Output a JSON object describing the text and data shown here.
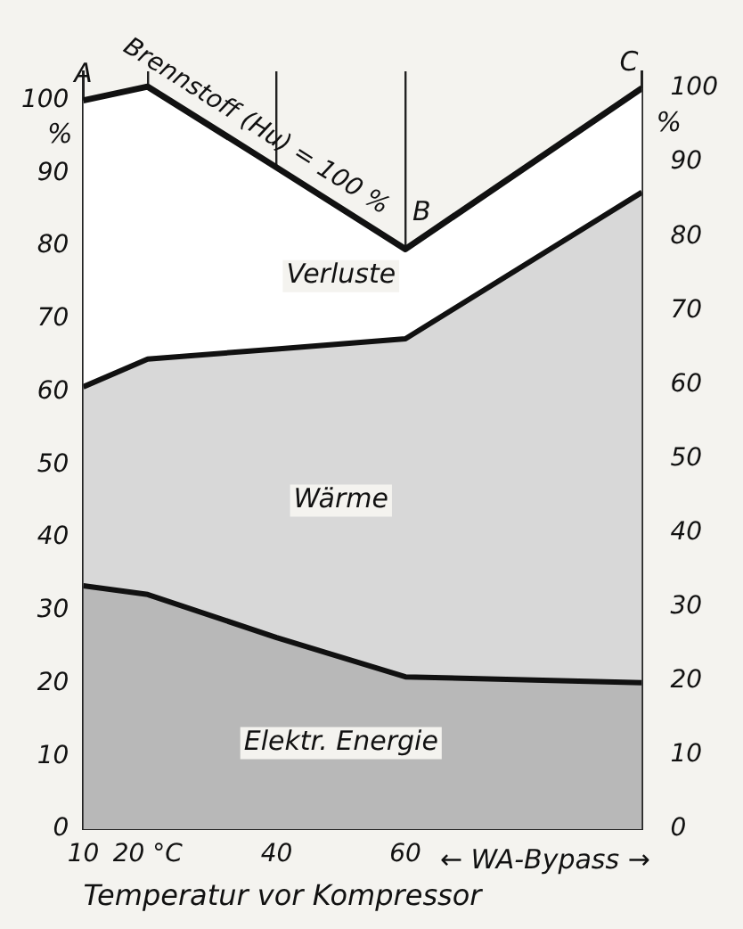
{
  "chart_data": {
    "type": "area",
    "stacked": true,
    "xlabel": "Temperatur vor Kompressor",
    "ylabel": "%",
    "y2label": "%",
    "x": [
      10,
      20,
      40,
      60,
      96.7
    ],
    "series": [
      {
        "name": "Elektr. Energie",
        "color": "#b8b8b8",
        "values": [
          33.4,
          32.2,
          26.3,
          20.9,
          20.1
        ]
      },
      {
        "name": "Wärme",
        "color": "#d8d8d8",
        "values": [
          27.3,
          32.3,
          39.6,
          46.4,
          67.3
        ]
      },
      {
        "name": "Verluste",
        "color": "#ffffff",
        "values": [
          39.3,
          37.4,
          24.9,
          12.3,
          14.3
        ]
      }
    ],
    "xlim": [
      10,
      96.7
    ],
    "xticks": [
      10,
      {
        "value": 20,
        "label": "20 °C"
      },
      40,
      60
    ],
    "ylim": [
      0,
      104
    ],
    "yticks": [
      0,
      10,
      20,
      30,
      40,
      50,
      60,
      70,
      80,
      90,
      100
    ],
    "y2lim": [
      0,
      102.3
    ],
    "y2ticks": [
      0,
      10,
      20,
      30,
      40,
      50,
      60,
      70,
      80,
      90,
      100
    ],
    "grid": "x",
    "legend": false,
    "annotations": [
      {
        "text": "Brennstoff (Hu) = 100 %",
        "x": 40,
        "y": 90.8
      },
      {
        "text": "A",
        "x": 10,
        "y": 100
      },
      {
        "text": "B",
        "x": 60,
        "y": 79.6
      },
      {
        "text": "C",
        "x": 96.7,
        "y": 101.7
      },
      "← WA-Bypass →"
    ]
  }
}
